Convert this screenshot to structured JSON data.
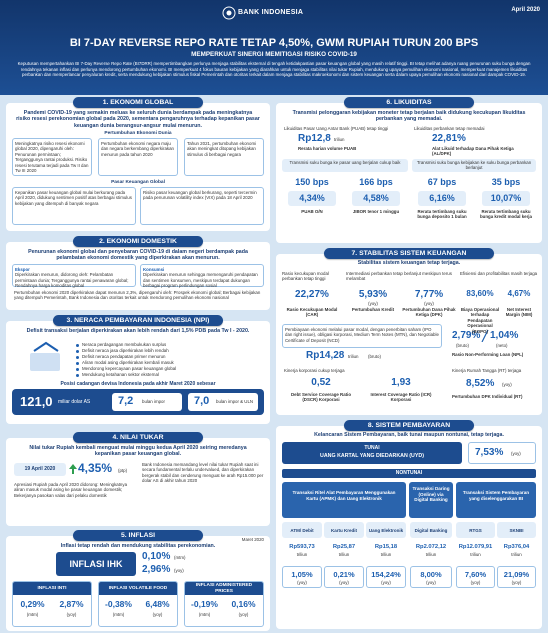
{
  "header": {
    "logo": "BANK INDONESIA",
    "date": "April 2020",
    "title": "BI 7-DAY REVERSE REPO RATE TETAP 4,50%, GWM RUPIAH TURUN 200 BPS",
    "subtitle": "MEMPERKUAT SINERGI MEMITIGASI RISIKO COVID-19",
    "intro": "Keputusan mempertahankan BI 7-Day Reverse Repo Rate (BI7DRR) mempertimbangkan perlunya menjaga stabilitas eksternal di tengah ketidakpastian pasar keuangan global yang masih relatif tinggi. BI tetap melihat adanya ruang penurunan suku bunga dengan rendahnya tekanan inflasi dan perlunya mendorong pertumbuhan ekonomi. BI memperkuat 4 fokus bauran kebijakan yang diarahkan untuk menjaga stabilitas nilai tukar Rupiah, mendukung upaya pemulihan ekonomi nasional, memperkuat manajemen likuiditas perbankan dan memperlancar penyaluran kredit, serta mendukung kebijakan stimulus fiskal Pemerintah dan otoritas terkait dalam menjaga stabilitas makroekonomi dan sistem keuangan serta dalam upaya pemulihan ekonomi nasional dari dampak COVID-19."
  },
  "ekonomi_global": {
    "heading": "1. EKONOMI GLOBAL",
    "lead": "Pandemi COVID-19 yang semakin meluas ke seluruh dunia berdampak pada meningkatnya risiko resesi perekonomian global pada 2020, sementara pengaruhnya terhadap kepanikan pasar keuangan dunia berangsur-angsur mulai menurun.",
    "sub1": "Pertumbuhan Ekonomi Dunia",
    "boxes": [
      "Meningkatnya risiko resesi ekonomi global 2020, dipengaruhi oleh: Penurunan permintaan; Terganggunya rantai produksi. Risiko resesi terutama terjadi pada Tw II dan Tw III 2020",
      "Pertumbuhan ekonomi negara maju dan negara berkembang diperkirakan menurun pada tahun 2020",
      "Tahun 2021, pertumbuhan ekonomi akan meningkat ditopang kebijakan stimulus di berbagai negara"
    ],
    "sub2": "Pasar Keuangan Global",
    "boxes2": [
      "Kepanikan pasar keuangan global mulai berkurang pada April 2020, didukung sentimen positif atas berbagai stimulus kebijakan yang ditempuh di banyak negara",
      "Risiko pasar keuangan global berkurang, seperti tercermin pada penurunan volatility index (VIX) pada 18 April 2020"
    ]
  },
  "ekonomi_domestik": {
    "heading": "2. EKONOMI DOMESTIK",
    "lead": "Penurunan ekonomi global dan penyebaran COVID-19 di dalam negeri berdampak pada pelambatan ekonomi domestik yang diperkirakan akan menurun.",
    "col1_title": "Ekspor",
    "col1": "Diperkirakan menurun, didorong oleh: Pelambatan permintaan dunia; Terganggunya rantai penawaran global; Rendahnya harga komoditas global",
    "col2_title": "Konsumsi",
    "col2": "Diperkirakan menurun sehingga memengaruhi pendapatan dan sentimen konsumen, meskipun terdapat dukungan berbagai program perlindungan sosial",
    "note": "Pertumbuhan ekonomi 2020 diperkirakan dapat menurun 2,3%, dipengaruhi oleh: Prospek ekonomi global; Berbagai kebijakan yang ditempuh Pemerintah, Bank Indonesia dan otoritas terkait untuk mendorong pemulihan ekonomi nasional"
  },
  "npi": {
    "heading": "3. NERACA PEMBAYARAN INDONESIA (NPI)",
    "lead": "Defisit transaksi berjalan diperkirakan akan lebih rendah dari 1,5% PDB pada Tw I - 2020.",
    "bullets": [
      "Neraca perdagangan membukukan surplus",
      "Defisit neraca jasa diperkirakan lebih rendah",
      "Defisit neraca pendapatan primer menurun",
      "Aliran modal asing diperkirakan kembali masuk",
      "Mendorong kepercayaan pasar keuangan global",
      "Mendukung ketahanan sektor eksternal"
    ],
    "reserve_title": "Posisi cadangan devisa Indonesia pada akhir Maret 2020 sebesar",
    "reserve_value": "121,0",
    "reserve_unit": "miliar dolar AS",
    "import_value": "7,2",
    "import_unit": "bulan impor",
    "debt_value": "7,0",
    "debt_unit": "bulan impor & ULN"
  },
  "nilai_tukar": {
    "heading": "4. NILAI TUKAR",
    "lead": "Nilai tukar Rupiah kembali menguat mulai minggu kedua April 2020 seiring meredanya kepanikan pasar keuangan global.",
    "date": "19 April 2020",
    "value": "4,35%",
    "value_note": "(ptp)",
    "text1": "Apresiasi Rupiah pada April 2020 didorong: Meningkatnya aliran masuk modal asing ke pasar keuangan domestik; Bekerjanya pasokan valas dari pelaku domestik",
    "text2": "Bank Indonesia memandang level nilai tukar Rupiah saat ini secara fundamental terlalu undervalued, dan diperkirakan bergerak stabil dan cenderung menguat ke arah Rp15.000 per dolar AS di akhir tahun 2020"
  },
  "inflasi": {
    "heading": "5. INFLASI",
    "lead": "Inflasi tetap rendah dan mendukung stabilitas perekonomian.",
    "date": "Maret 2020",
    "ihk_label": "INFLASI IHK",
    "ihk_mtm": "0,10%",
    "ihk_yoy": "2,96%",
    "mtm_note": "(mtm)",
    "yoy_note": "(yoy)",
    "items": [
      {
        "label": "INFLASI INTI",
        "mtm": "0,29%",
        "yoy": "2,87%"
      },
      {
        "label": "INFLASI VOLATILE FOOD",
        "mtm": "-0,38%",
        "yoy": "6,48%"
      },
      {
        "label": "INFLASI ADMINISTERED PRICES",
        "mtm": "-0,19%",
        "yoy": "0,16%"
      }
    ]
  },
  "likuiditas": {
    "heading": "6. LIKUIDITAS",
    "lead": "Transmisi pelonggaran kebijakan moneter tetap berjalan baik didukung kecukupan likuiditas perbankan yang memadai.",
    "left_title": "Likuiditas Pasar Uang Antar Bank (PUAB) tetap tinggi",
    "left_value": "Rp12,8",
    "left_unit": "triliun",
    "left_label": "Rerata harian volume PUAB",
    "right_title": "Likuiditas perbankan tetap memadai",
    "right_value": "22,81%",
    "right_label": "Alat Likuid terhadap Dana Pihak Ketiga (AL/DPK)",
    "left2_title": "Transmisi suku bunga ke pasar uang berjalan cukup baik",
    "pts": [
      {
        "value": "150 bps",
        "pct": "4,34%",
        "label": "PUAB O/N"
      },
      {
        "value": "166 bps",
        "pct": "4,58%",
        "label": "JIBOR tenor 1 minggu"
      }
    ],
    "right2_title": "Transmisi suku bunga kebijakan ke suku bunga perbankan berlanjut",
    "pts2": [
      {
        "value": "67 bps",
        "pct": "6,16%",
        "label": "Rerata tertimbang suku bunga deposito 1 bulan"
      },
      {
        "value": "35 bps",
        "pct": "10,07%",
        "label": "Rerata tertimbang suku bunga kredit modal kerja"
      }
    ]
  },
  "stabilitas": {
    "heading": "7. STABILITAS SISTEM KEUANGAN",
    "lead": "Stabilitas sistem keuangan tetap terjaga.",
    "ratios": [
      {
        "desc": "Rasio kecukupan modal perbankan tetap tinggi",
        "value": "22,27%",
        "label": "Rasio Kecukupan Modal (CAR)"
      },
      {
        "desc": "Intermediasi perbankan tetap berlanjut meskipun terus melambat",
        "value": "5,93%",
        "label": "Pertumbuhan Kredit"
      },
      {
        "value": "7,77%",
        "label": "Pertumbuhan Dana Pihak Ketiga (DPK)"
      },
      {
        "desc": "Efisiensi dan profitabilitas masih terjaga",
        "value": "83,60%",
        "label": "Biaya Operasional terhadap Pendapatan Operasional (BOPO)"
      },
      {
        "value": "4,67%",
        "label": "Net Interest Margin (NIM)"
      }
    ],
    "yoy_note": "(yoy)",
    "npl": {
      "desc": "Pembiayaan ekonomi melalui pasar modal, dengan penerbitan saham (IPO dan right issue), obligasi korporasi, Medium Term Notes (MTN), dan Negotiable Certificate of Deposit (NCD)",
      "value": "Rp14,28",
      "unit": "triliun",
      "note": "(bruto)",
      "gross": "2,79%",
      "net": "1,04%",
      "gross_note": "(bruto)",
      "net_note": "(neto)",
      "label": "Rasio Non-Performing Loan (NPL)"
    },
    "liq_title": "Kinerja korporasi cukup terjaga",
    "liq": [
      {
        "value": "0,52",
        "label": "Debt Service Coverage Ratio (DSCR) Korporasi"
      },
      {
        "value": "1,93",
        "label": "Interest Coverage Ratio (ICR) Korporasi"
      }
    ],
    "dpk_title": "Kinerja Rumah Tangga (RT) terjaga",
    "dpk_value": "8,52%",
    "dpk_label": "Pertumbuhan DPK Individual (RT)"
  },
  "sistem_pembayaran": {
    "heading": "8. SISTEM PEMBAYARAN",
    "lead": "Kelancaran Sistem Pembayaran, baik tunai maupun nontunai, tetap terjaga.",
    "tunai_label": "TUNAI",
    "uyd_label": "UANG KARTAL YANG DIEDARKAN (UYD)",
    "uyd_value": "7,53%",
    "nontunai_label": "NONTUNAI",
    "group1": "Transaksi Ritel Alat Pembayaran Menggunakan Kartu (APMK) dan Uang Elektronik",
    "group2": "Transaksi Daring (Online) via Digital Banking",
    "group3": "Transaksi Sistem Pembayaran yang diselenggarakan BI",
    "items": [
      {
        "label": "ATM/ Debit",
        "value": "Rp593,73",
        "unit": "triliun",
        "growth": "1,05%"
      },
      {
        "label": "Kartu Kredit",
        "value": "Rp25,87",
        "unit": "triliun",
        "growth": "0,21%"
      },
      {
        "label": "Uang Elektronik",
        "value": "Rp15,18",
        "unit": "triliun",
        "growth": "154,24%"
      },
      {
        "label": "Digital Banking",
        "value": "Rp2.072,12",
        "unit": "triliun",
        "growth": "8,00%"
      },
      {
        "label": "RTGS",
        "value": "Rp12.079,91",
        "unit": "triliun",
        "growth": "7,60%"
      },
      {
        "label": "SKNBI",
        "value": "Rp376,04",
        "unit": "triliun",
        "growth": "21,09%"
      }
    ],
    "yoy_note": "(yoy)"
  }
}
